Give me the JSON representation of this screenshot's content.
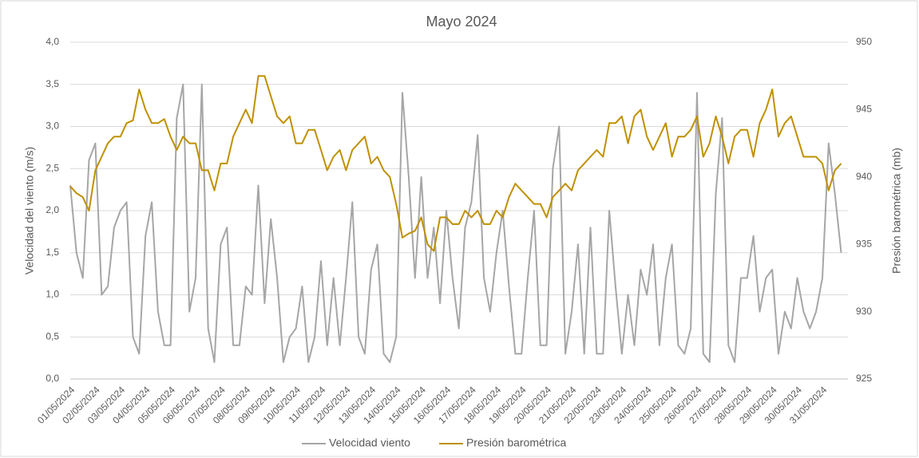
{
  "chart_data": {
    "type": "line",
    "title": "Mayo 2024",
    "ylabel": "Velocidad del viento (m/s)",
    "y2label": "Presión barométrica (mb)",
    "categories": [
      "01/05/2024",
      null,
      null,
      null,
      "02/05/2024",
      null,
      null,
      null,
      "03/05/2024",
      null,
      null,
      null,
      "04/05/2024",
      null,
      null,
      null,
      "05/05/2024",
      null,
      null,
      null,
      "06/05/2024",
      null,
      null,
      null,
      "07/05/2024",
      null,
      null,
      null,
      "08/05/2024",
      null,
      null,
      null,
      "09/05/2024",
      null,
      null,
      null,
      "10/05/2024",
      null,
      null,
      null,
      "11/05/2024",
      null,
      null,
      null,
      "12/05/2024",
      null,
      null,
      null,
      "13/05/2024",
      null,
      null,
      null,
      "14/05/2024",
      null,
      null,
      null,
      "15/05/2024",
      null,
      null,
      null,
      "16/05/2024",
      null,
      null,
      null,
      "17/05/2024",
      null,
      null,
      null,
      "18/05/2024",
      null,
      null,
      null,
      "19/05/2024",
      null,
      null,
      null,
      "20/05/2024",
      null,
      null,
      null,
      "21/05/2024",
      null,
      null,
      null,
      "22/05/2024",
      null,
      null,
      null,
      "23/05/2024",
      null,
      null,
      null,
      "24/05/2024",
      null,
      null,
      null,
      "25/05/2024",
      null,
      null,
      null,
      "26/05/2024",
      null,
      null,
      null,
      "27/05/2024",
      null,
      null,
      null,
      "28/05/2024",
      null,
      null,
      null,
      "29/05/2024",
      null,
      null,
      null,
      "30/05/2024",
      null,
      null,
      null,
      "31/05/2024",
      null,
      null,
      null
    ],
    "series": [
      {
        "name": "Velocidad viento",
        "color": "#a6a6a6",
        "values": [
          2.3,
          1.5,
          1.2,
          2.6,
          2.8,
          1.0,
          1.1,
          1.8,
          2.0,
          2.1,
          0.5,
          0.3,
          1.7,
          2.1,
          0.8,
          0.4,
          0.4,
          3.1,
          3.5,
          0.8,
          1.2,
          3.5,
          0.6,
          0.2,
          1.6,
          1.8,
          0.4,
          0.4,
          1.1,
          1.0,
          2.3,
          0.9,
          1.9,
          1.2,
          0.2,
          0.5,
          0.6,
          1.1,
          0.2,
          0.5,
          1.4,
          0.4,
          1.2,
          0.4,
          1.2,
          2.1,
          0.5,
          0.3,
          1.3,
          1.6,
          0.3,
          0.2,
          0.5,
          3.4,
          2.4,
          1.2,
          2.4,
          1.2,
          1.8,
          0.9,
          2.0,
          1.2,
          0.6,
          1.8,
          2.1,
          2.9,
          1.2,
          0.8,
          1.5,
          2.0,
          1.1,
          0.3,
          0.3,
          1.2,
          2.0,
          0.4,
          0.4,
          2.5,
          3.0,
          0.3,
          0.8,
          1.6,
          0.3,
          1.8,
          0.3,
          0.3,
          2.0,
          1.1,
          0.3,
          1.0,
          0.4,
          1.3,
          1.0,
          1.6,
          0.4,
          1.2,
          1.6,
          0.4,
          0.3,
          0.6,
          3.4,
          0.3,
          0.2,
          2.2,
          3.1,
          0.4,
          0.2,
          1.2,
          1.2,
          1.7,
          0.8,
          1.2,
          1.3,
          0.3,
          0.8,
          0.6,
          1.2,
          0.8,
          0.6,
          0.8,
          1.2,
          2.8,
          2.2,
          1.5
        ]
      },
      {
        "name": "Presión barométrica",
        "color": "#bf9000",
        "axis": "y2",
        "values": [
          939.3,
          938.8,
          938.5,
          937.5,
          940.5,
          941.5,
          942.5,
          943.0,
          943.0,
          944.0,
          944.2,
          946.5,
          945.0,
          944.0,
          944.0,
          944.3,
          943.0,
          942.0,
          943.0,
          942.5,
          942.5,
          940.5,
          940.5,
          939.0,
          941.0,
          941.0,
          943.0,
          944.0,
          945.0,
          944.0,
          947.5,
          947.5,
          946.0,
          944.5,
          944.0,
          944.5,
          942.5,
          942.5,
          943.5,
          943.5,
          942.0,
          940.5,
          941.5,
          942.0,
          940.5,
          942.0,
          942.5,
          943.0,
          941.0,
          941.5,
          940.5,
          940.0,
          938.0,
          935.5,
          935.8,
          936.0,
          937.0,
          935.0,
          934.5,
          937.0,
          937.0,
          936.5,
          936.5,
          937.5,
          937.0,
          937.5,
          936.5,
          936.5,
          937.5,
          937.0,
          938.5,
          939.5,
          939.0,
          938.5,
          938.0,
          938.0,
          937.0,
          938.5,
          939.0,
          939.5,
          939.0,
          940.5,
          941.0,
          941.5,
          942.0,
          941.5,
          944.0,
          944.0,
          944.5,
          942.5,
          944.5,
          945.0,
          943.0,
          942.0,
          943.0,
          944.0,
          941.5,
          943.0,
          943.0,
          943.5,
          944.5,
          941.5,
          942.5,
          944.5,
          943.0,
          941.0,
          943.0,
          943.5,
          943.5,
          941.5,
          944.0,
          945.0,
          946.5,
          943.0,
          944.0,
          944.5,
          943.0,
          941.5,
          941.5,
          941.5,
          941.0,
          939.0,
          940.5,
          941.0
        ]
      }
    ],
    "ylim": [
      0,
      4
    ],
    "yticks": [
      {
        "value": 0,
        "label": "0,0"
      },
      {
        "value": 0.5,
        "label": "0,5"
      },
      {
        "value": 1,
        "label": "1,0"
      },
      {
        "value": 1.5,
        "label": "1,5"
      },
      {
        "value": 2,
        "label": "2,0"
      },
      {
        "value": 2.5,
        "label": "2,5"
      },
      {
        "value": 3,
        "label": "3,0"
      },
      {
        "value": 3.5,
        "label": "3,5"
      },
      {
        "value": 4,
        "label": "4,0"
      }
    ],
    "y2lim": [
      925,
      950
    ],
    "y2ticks": [
      925,
      930,
      935,
      940,
      945,
      950
    ],
    "grid": true,
    "legend": "bottom"
  }
}
